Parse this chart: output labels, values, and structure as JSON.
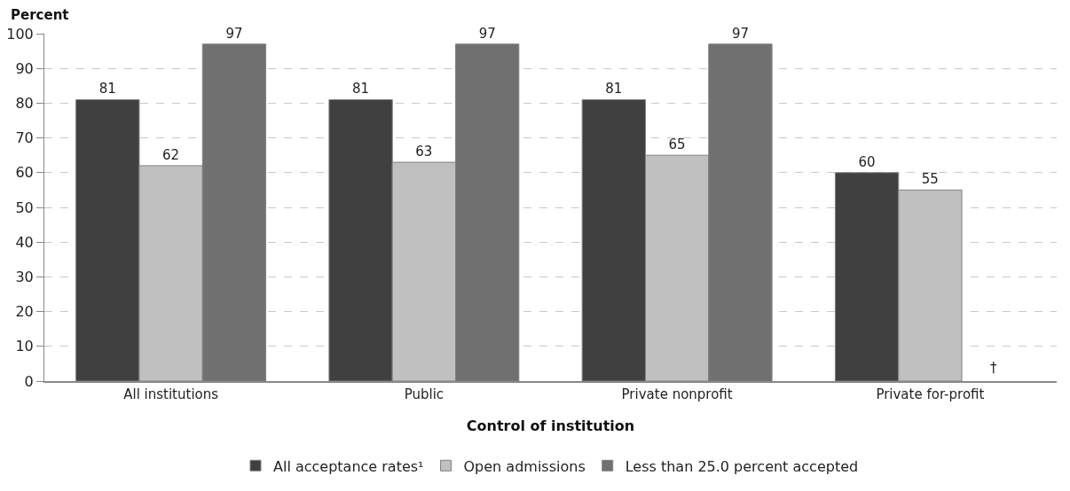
{
  "chart_data": {
    "type": "bar",
    "ylabel": "Percent",
    "xlabel": "Control of institution",
    "categories": [
      "All institutions",
      "Public",
      "Private nonprofit",
      "Private for-profit"
    ],
    "series": [
      {
        "name": "All acceptance rates¹",
        "color": "#404040",
        "values": [
          81,
          81,
          81,
          60
        ],
        "value_labels": [
          "81",
          "81",
          "81",
          "60"
        ]
      },
      {
        "name": "Open admissions",
        "color": "#c0c0c0",
        "values": [
          62,
          63,
          65,
          55
        ],
        "value_labels": [
          "62",
          "63",
          "65",
          "55"
        ]
      },
      {
        "name": "Less than 25.0 percent accepted",
        "color": "#707070",
        "values": [
          97,
          97,
          97,
          null
        ],
        "value_labels": [
          "97",
          "97",
          "97",
          "†"
        ]
      }
    ],
    "ylim": [
      0,
      100
    ],
    "yticks": [
      0,
      10,
      20,
      30,
      40,
      50,
      60,
      70,
      80,
      90,
      100
    ],
    "grid": "y",
    "line_style": "dashed",
    "legend": "bottom"
  }
}
